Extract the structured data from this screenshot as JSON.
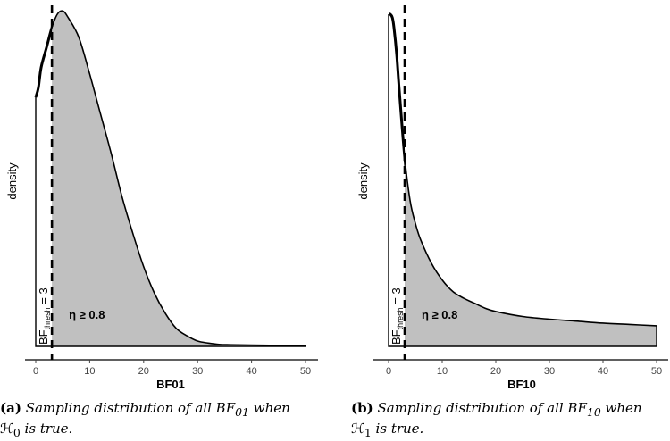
{
  "chart_data": [
    {
      "id": "a",
      "type": "area",
      "title": "",
      "xlabel": "BF01",
      "ylabel": "density",
      "xlim": [
        0,
        50
      ],
      "xticks": [
        "0",
        "10",
        "20",
        "30",
        "40",
        "50"
      ],
      "threshold": {
        "x": 3,
        "label_main": "BF",
        "label_sub": "thresh",
        "label_tail": " = 3"
      },
      "annotation": "η ≥ 0.8",
      "density_relative": {
        "x": [
          0,
          0.5,
          1,
          2,
          3,
          4,
          5,
          6,
          8,
          10,
          12,
          14,
          16,
          18,
          20,
          22,
          24,
          26,
          28,
          30,
          32,
          34,
          36,
          40,
          45,
          50
        ],
        "y": [
          0.75,
          0.78,
          0.84,
          0.9,
          0.96,
          1.0,
          1.01,
          0.99,
          0.93,
          0.82,
          0.7,
          0.58,
          0.45,
          0.34,
          0.24,
          0.16,
          0.1,
          0.055,
          0.032,
          0.016,
          0.01,
          0.006,
          0.005,
          0.004,
          0.003,
          0.003
        ]
      },
      "caption_label": "(a)",
      "caption_line1": "Sampling distribution of all BF",
      "caption_sub1": "01",
      "caption_line1_tail": " when",
      "caption_line2_symbol": "ℋ",
      "caption_sub2": "0",
      "caption_line2_tail": " is true."
    },
    {
      "id": "b",
      "type": "area",
      "title": "",
      "xlabel": "BF10",
      "ylabel": "density",
      "xlim": [
        0,
        50
      ],
      "xticks": [
        "0",
        "10",
        "20",
        "30",
        "40",
        "50"
      ],
      "threshold": {
        "x": 3,
        "label_main": "BF",
        "label_sub": "thresh",
        "label_tail": " = 3"
      },
      "annotation": "η ≥ 0.8",
      "density_relative": {
        "x": [
          0,
          0.3,
          0.7,
          1,
          1.5,
          2,
          3,
          4,
          5,
          6,
          8,
          10,
          12,
          14,
          16,
          18,
          20,
          25,
          30,
          35,
          40,
          45,
          50
        ],
        "y": [
          1.0,
          1.0,
          0.99,
          0.96,
          0.88,
          0.77,
          0.57,
          0.44,
          0.37,
          0.32,
          0.25,
          0.2,
          0.165,
          0.145,
          0.13,
          0.115,
          0.105,
          0.09,
          0.082,
          0.076,
          0.07,
          0.066,
          0.062
        ]
      },
      "caption_label": "(b)",
      "caption_line1": "Sampling distribution of all BF",
      "caption_sub1": "10",
      "caption_line1_tail": " when",
      "caption_line2_symbol": "ℋ",
      "caption_sub2": "1",
      "caption_line2_tail": " is true."
    }
  ]
}
